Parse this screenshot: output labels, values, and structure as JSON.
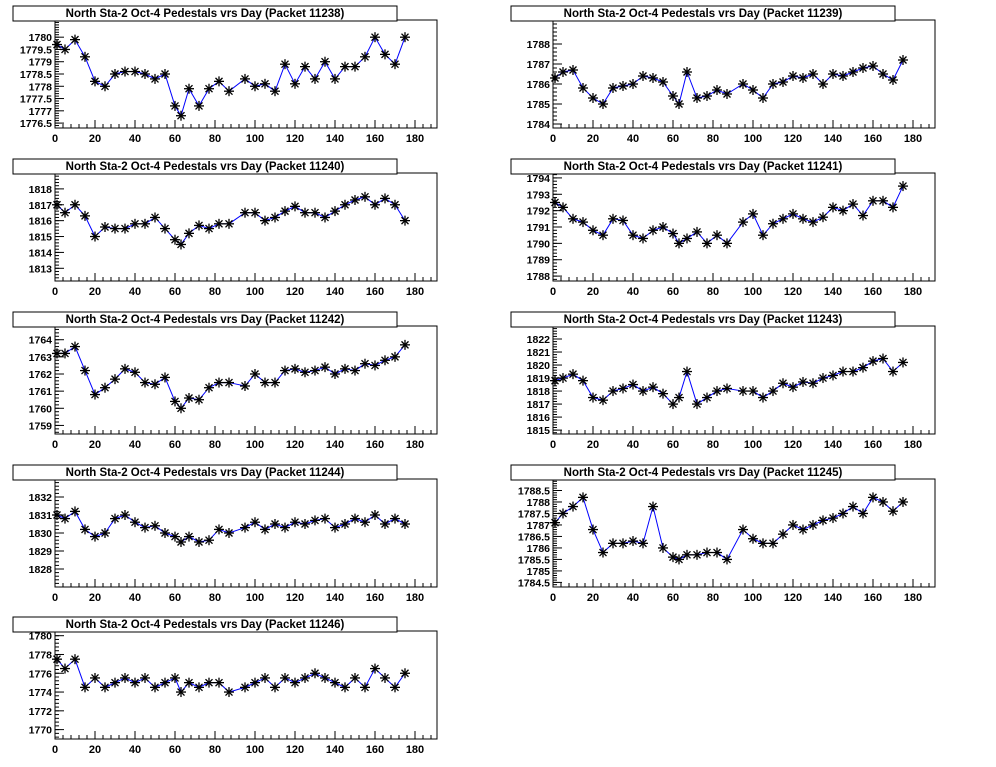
{
  "chart_data": [
    {
      "type": "line",
      "title": "North Sta-2 Oct-4 Pedestals vrs Day (Packet 11238)",
      "xlim": [
        0,
        191
      ],
      "ylim": [
        1776.3,
        1780.7
      ],
      "xticks": [
        0,
        20,
        40,
        60,
        80,
        100,
        120,
        140,
        160,
        180
      ],
      "yticks": [
        "1776.5",
        "1777",
        "1777.5",
        "1778",
        "1778.5",
        "1779",
        "1779.5",
        "1780"
      ],
      "x": [
        1,
        5,
        10,
        15,
        20,
        25,
        30,
        35,
        40,
        45,
        50,
        55,
        60,
        63,
        67,
        72,
        77,
        82,
        87,
        95,
        100,
        105,
        110,
        115,
        120,
        125,
        130,
        135,
        140,
        145,
        150,
        155,
        160,
        165,
        170,
        175
      ],
      "y": [
        1779.7,
        1779.5,
        1779.9,
        1779.2,
        1778.2,
        1778.0,
        1778.5,
        1778.6,
        1778.6,
        1778.5,
        1778.3,
        1778.5,
        1777.2,
        1776.8,
        1777.9,
        1777.2,
        1777.9,
        1778.2,
        1777.8,
        1778.3,
        1778.0,
        1778.1,
        1777.8,
        1778.9,
        1778.1,
        1778.8,
        1778.3,
        1779.0,
        1778.3,
        1778.8,
        1778.8,
        1779.2,
        1780.0,
        1779.3,
        1778.9,
        1780.0
      ]
    },
    {
      "type": "line",
      "title": "North Sta-2 Oct-4 Pedestals vrs Day (Packet 11239)",
      "xlim": [
        0,
        191
      ],
      "ylim": [
        1783.8,
        1789.2
      ],
      "xticks": [
        0,
        20,
        40,
        60,
        80,
        100,
        120,
        140,
        160,
        180
      ],
      "yticks": [
        "1784",
        "1785",
        "1786",
        "1787",
        "1788"
      ],
      "x": [
        1,
        5,
        10,
        15,
        20,
        25,
        30,
        35,
        40,
        45,
        50,
        55,
        60,
        63,
        67,
        72,
        77,
        82,
        87,
        95,
        100,
        105,
        110,
        115,
        120,
        125,
        130,
        135,
        140,
        145,
        150,
        155,
        160,
        165,
        170,
        175
      ],
      "y": [
        1786.3,
        1786.6,
        1786.7,
        1785.8,
        1785.3,
        1785.0,
        1785.8,
        1785.9,
        1786.0,
        1786.4,
        1786.3,
        1786.1,
        1785.4,
        1785.0,
        1786.6,
        1785.3,
        1785.4,
        1785.7,
        1785.5,
        1786.0,
        1785.7,
        1785.3,
        1786.0,
        1786.1,
        1786.4,
        1786.3,
        1786.5,
        1786.0,
        1786.5,
        1786.4,
        1786.6,
        1786.8,
        1786.9,
        1786.5,
        1786.2,
        1787.2
      ]
    },
    {
      "type": "line",
      "title": "North Sta-2 Oct-4 Pedestals vrs Day (Packet 11240)",
      "xlim": [
        0,
        191
      ],
      "ylim": [
        1812.2,
        1819
      ],
      "xticks": [
        0,
        20,
        40,
        60,
        80,
        100,
        120,
        140,
        160,
        180
      ],
      "yticks": [
        "1813",
        "1814",
        "1815",
        "1816",
        "1817",
        "1818"
      ],
      "x": [
        1,
        5,
        10,
        15,
        20,
        25,
        30,
        35,
        40,
        45,
        50,
        55,
        60,
        63,
        67,
        72,
        77,
        82,
        87,
        95,
        100,
        105,
        110,
        115,
        120,
        125,
        130,
        135,
        140,
        145,
        150,
        155,
        160,
        165,
        170,
        175
      ],
      "y": [
        1817.0,
        1816.5,
        1817.0,
        1816.3,
        1815.0,
        1815.6,
        1815.5,
        1815.5,
        1815.8,
        1815.8,
        1816.2,
        1815.5,
        1814.8,
        1814.5,
        1815.2,
        1815.7,
        1815.5,
        1815.8,
        1815.8,
        1816.5,
        1816.5,
        1816.0,
        1816.2,
        1816.6,
        1816.9,
        1816.5,
        1816.5,
        1816.2,
        1816.6,
        1817.0,
        1817.3,
        1817.5,
        1817.0,
        1817.4,
        1817.0,
        1816.0
      ]
    },
    {
      "type": "line",
      "title": "North Sta-2 Oct-4 Pedestals vrs Day (Packet 11241)",
      "xlim": [
        0,
        191
      ],
      "ylim": [
        1787.7,
        1794.3
      ],
      "xticks": [
        0,
        20,
        40,
        60,
        80,
        100,
        120,
        140,
        160,
        180
      ],
      "yticks": [
        "1788",
        "1789",
        "1790",
        "1791",
        "1792",
        "1793",
        "1794"
      ],
      "x": [
        1,
        5,
        10,
        15,
        20,
        25,
        30,
        35,
        40,
        45,
        50,
        55,
        60,
        63,
        67,
        72,
        77,
        82,
        87,
        95,
        100,
        105,
        110,
        115,
        120,
        125,
        130,
        135,
        140,
        145,
        150,
        155,
        160,
        165,
        170,
        175
      ],
      "y": [
        1792.5,
        1792.2,
        1791.5,
        1791.3,
        1790.8,
        1790.5,
        1791.5,
        1791.4,
        1790.5,
        1790.3,
        1790.8,
        1791.0,
        1790.6,
        1790.0,
        1790.3,
        1790.7,
        1790.0,
        1790.5,
        1790.0,
        1791.3,
        1791.8,
        1790.5,
        1791.2,
        1791.5,
        1791.8,
        1791.5,
        1791.3,
        1791.6,
        1792.2,
        1792.0,
        1792.4,
        1791.7,
        1792.6,
        1792.6,
        1792.2,
        1793.5
      ]
    },
    {
      "type": "line",
      "title": "North Sta-2 Oct-4 Pedestals vrs Day (Packet 11242)",
      "xlim": [
        0,
        191
      ],
      "ylim": [
        1758.5,
        1764.8
      ],
      "xticks": [
        0,
        20,
        40,
        60,
        80,
        100,
        120,
        140,
        160,
        180
      ],
      "yticks": [
        "1759",
        "1760",
        "1761",
        "1762",
        "1763",
        "1764"
      ],
      "x": [
        1,
        5,
        10,
        15,
        20,
        25,
        30,
        35,
        40,
        45,
        50,
        55,
        60,
        63,
        67,
        72,
        77,
        82,
        87,
        95,
        100,
        105,
        110,
        115,
        120,
        125,
        130,
        135,
        140,
        145,
        150,
        155,
        160,
        165,
        170,
        175
      ],
      "y": [
        1763.2,
        1763.2,
        1763.6,
        1762.2,
        1760.8,
        1761.2,
        1761.7,
        1762.3,
        1762.1,
        1761.5,
        1761.4,
        1761.8,
        1760.4,
        1760.0,
        1760.6,
        1760.5,
        1761.2,
        1761.5,
        1761.5,
        1761.3,
        1762.0,
        1761.5,
        1761.5,
        1762.2,
        1762.3,
        1762.1,
        1762.2,
        1762.4,
        1762.0,
        1762.3,
        1762.2,
        1762.6,
        1762.5,
        1762.8,
        1763.0,
        1763.7
      ]
    },
    {
      "type": "line",
      "title": "North Sta-2 Oct-4 Pedestals vrs Day (Packet 11243)",
      "xlim": [
        0,
        191
      ],
      "ylim": [
        1814.7,
        1823
      ],
      "xticks": [
        0,
        20,
        40,
        60,
        80,
        100,
        120,
        140,
        160,
        180
      ],
      "yticks": [
        "1815",
        "1816",
        "1817",
        "1818",
        "1819",
        "1820",
        "1821",
        "1822"
      ],
      "x": [
        1,
        5,
        10,
        15,
        20,
        25,
        30,
        35,
        40,
        45,
        50,
        55,
        60,
        63,
        67,
        72,
        77,
        82,
        87,
        95,
        100,
        105,
        110,
        115,
        120,
        125,
        130,
        135,
        140,
        145,
        150,
        155,
        160,
        165,
        170,
        175
      ],
      "y": [
        1818.8,
        1819.0,
        1819.3,
        1818.8,
        1817.5,
        1817.3,
        1818.0,
        1818.2,
        1818.5,
        1818.0,
        1818.3,
        1817.8,
        1817.0,
        1817.5,
        1819.5,
        1817.0,
        1817.5,
        1818.0,
        1818.2,
        1818.0,
        1818.0,
        1817.5,
        1818.0,
        1818.6,
        1818.3,
        1818.7,
        1818.6,
        1819.0,
        1819.2,
        1819.5,
        1819.5,
        1819.8,
        1820.3,
        1820.5,
        1819.5,
        1820.2
      ]
    },
    {
      "type": "line",
      "title": "North Sta-2 Oct-4 Pedestals vrs Day (Packet 11244)",
      "xlim": [
        0,
        191
      ],
      "ylim": [
        1827,
        1833
      ],
      "xticks": [
        0,
        20,
        40,
        60,
        80,
        100,
        120,
        140,
        160,
        180
      ],
      "yticks": [
        "1828",
        "1829",
        "1830",
        "1831",
        "1832"
      ],
      "x": [
        1,
        5,
        10,
        15,
        20,
        25,
        30,
        35,
        40,
        45,
        50,
        55,
        60,
        63,
        67,
        72,
        77,
        82,
        87,
        95,
        100,
        105,
        110,
        115,
        120,
        125,
        130,
        135,
        140,
        145,
        150,
        155,
        160,
        165,
        170,
        175
      ],
      "y": [
        1831.0,
        1830.8,
        1831.2,
        1830.2,
        1829.8,
        1830.0,
        1830.8,
        1831.0,
        1830.6,
        1830.3,
        1830.4,
        1830.0,
        1829.8,
        1829.5,
        1829.8,
        1829.5,
        1829.6,
        1830.2,
        1830.0,
        1830.3,
        1830.6,
        1830.2,
        1830.5,
        1830.3,
        1830.6,
        1830.5,
        1830.7,
        1830.8,
        1830.3,
        1830.5,
        1830.8,
        1830.6,
        1831.0,
        1830.5,
        1830.8,
        1830.5
      ]
    },
    {
      "type": "line",
      "title": "North Sta-2 Oct-4 Pedestals vrs Day (Packet 11245)",
      "xlim": [
        0,
        191
      ],
      "ylim": [
        1784.3,
        1789
      ],
      "xticks": [
        0,
        20,
        40,
        60,
        80,
        100,
        120,
        140,
        160,
        180
      ],
      "yticks": [
        "1784.5",
        "1785",
        "1785.5",
        "1786",
        "1786.5",
        "1787",
        "1787.5",
        "1788",
        "1788.5"
      ],
      "x": [
        1,
        5,
        10,
        15,
        20,
        25,
        30,
        35,
        40,
        45,
        50,
        55,
        60,
        63,
        67,
        72,
        77,
        82,
        87,
        95,
        100,
        105,
        110,
        115,
        120,
        125,
        130,
        135,
        140,
        145,
        150,
        155,
        160,
        165,
        170,
        175
      ],
      "y": [
        1787.1,
        1787.5,
        1787.8,
        1788.2,
        1786.8,
        1785.8,
        1786.2,
        1786.2,
        1786.3,
        1786.2,
        1787.8,
        1786.0,
        1785.6,
        1785.5,
        1785.7,
        1785.7,
        1785.8,
        1785.8,
        1785.5,
        1786.8,
        1786.4,
        1786.2,
        1786.2,
        1786.6,
        1787.0,
        1786.8,
        1787.0,
        1787.2,
        1787.3,
        1787.5,
        1787.8,
        1787.5,
        1788.2,
        1788.0,
        1787.6,
        1788.0
      ]
    },
    {
      "type": "line",
      "title": "North Sta-2 Oct-4 Pedestals vrs Day (Packet 11246)",
      "xlim": [
        0,
        191
      ],
      "ylim": [
        1769,
        1780.5
      ],
      "xticks": [
        0,
        20,
        40,
        60,
        80,
        100,
        120,
        140,
        160,
        180
      ],
      "yticks": [
        "1770",
        "1772",
        "1774",
        "1776",
        "1778",
        "1780"
      ],
      "x": [
        1,
        5,
        10,
        15,
        20,
        25,
        30,
        35,
        40,
        45,
        50,
        55,
        60,
        63,
        67,
        72,
        77,
        82,
        87,
        95,
        100,
        105,
        110,
        115,
        120,
        125,
        130,
        135,
        140,
        145,
        150,
        155,
        160,
        165,
        170,
        175
      ],
      "y": [
        1777.5,
        1776.5,
        1777.5,
        1774.5,
        1775.5,
        1774.5,
        1775.0,
        1775.5,
        1775.0,
        1775.5,
        1774.5,
        1775.0,
        1775.5,
        1774.0,
        1775.0,
        1774.5,
        1775.0,
        1775.0,
        1774.0,
        1774.5,
        1775.0,
        1775.5,
        1774.5,
        1775.5,
        1775.0,
        1775.5,
        1776.0,
        1775.5,
        1775.0,
        1774.5,
        1775.5,
        1774.5,
        1776.5,
        1775.5,
        1774.5,
        1776.0
      ]
    }
  ],
  "colors": {
    "line": "#0000ff",
    "marker": "#000000",
    "frame": "#000000"
  }
}
